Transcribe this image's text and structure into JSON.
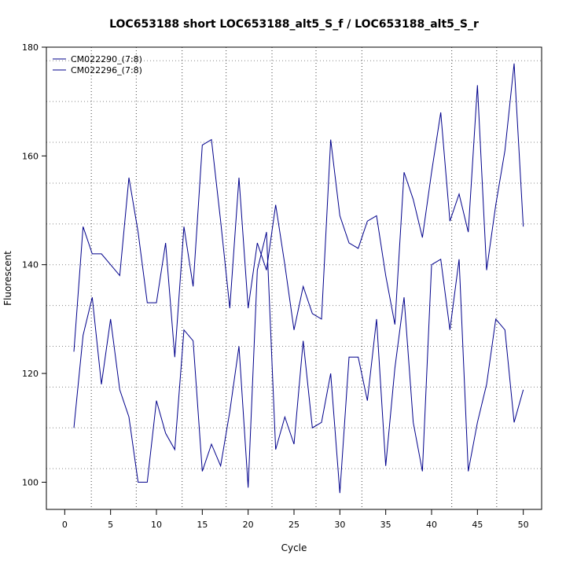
{
  "chart_data": {
    "type": "line",
    "title": "LOC653188 short LOC653188_alt5_S_f / LOC653188_alt5_S_r",
    "xlabel": "Cycle",
    "ylabel": "Fluorescent",
    "xlim": [
      -2,
      52
    ],
    "ylim": [
      95,
      180
    ],
    "xticks": [
      0,
      5,
      10,
      15,
      20,
      25,
      30,
      35,
      40,
      45,
      50
    ],
    "yticks": [
      100,
      120,
      140,
      160,
      180
    ],
    "ygrid": [
      102.5,
      110,
      117.5,
      125,
      132.5,
      140,
      147.5,
      155,
      162.5,
      170,
      177.5
    ],
    "xgrid": [
      2.9,
      7.8,
      12.8,
      17.6,
      22.6,
      27.4,
      32.4,
      42.2,
      47.1
    ],
    "legend_position": "top-left",
    "series": [
      {
        "name": "CM022290_(7:8)",
        "color": "#00008b",
        "x": [
          1,
          2,
          3,
          4,
          5,
          6,
          7,
          8,
          9,
          10,
          11,
          12,
          13,
          14,
          15,
          16,
          17,
          18,
          19,
          20,
          21,
          22,
          23,
          24,
          25,
          26,
          27,
          28,
          29,
          30,
          31,
          32,
          33,
          34,
          35,
          36,
          37,
          38,
          39,
          40,
          41,
          42,
          43,
          44,
          45,
          46,
          47,
          48,
          49,
          50
        ],
        "values": [
          124,
          147,
          142,
          142,
          140,
          138,
          156,
          146,
          133,
          133,
          144,
          123,
          147,
          136,
          162,
          163,
          148,
          132,
          156,
          132,
          144,
          139,
          151,
          140,
          128,
          136,
          131,
          130,
          163,
          149,
          144,
          143,
          148,
          149,
          138,
          129,
          157,
          152,
          145,
          157,
          168,
          148,
          153,
          146,
          173,
          139,
          151,
          161,
          177,
          147
        ]
      },
      {
        "name": "CM022296_(7:8)",
        "color": "#00008b",
        "x": [
          1,
          2,
          3,
          4,
          5,
          6,
          7,
          8,
          9,
          10,
          11,
          12,
          13,
          14,
          15,
          16,
          17,
          18,
          19,
          20,
          21,
          22,
          23,
          24,
          25,
          26,
          27,
          28,
          29,
          30,
          31,
          32,
          33,
          34,
          35,
          36,
          37,
          38,
          39,
          40,
          41,
          42,
          43,
          44,
          45,
          46,
          47,
          48,
          49,
          50
        ],
        "values": [
          110,
          127,
          134,
          118,
          130,
          117,
          112,
          100,
          100,
          115,
          109,
          106,
          128,
          126,
          102,
          107,
          103,
          113,
          125,
          99,
          139,
          146,
          106,
          112,
          107,
          126,
          110,
          111,
          120,
          98,
          123,
          123,
          115,
          130,
          103,
          121,
          134,
          111,
          102,
          140,
          141,
          128,
          141,
          102,
          111,
          118,
          130,
          128,
          111,
          117
        ]
      }
    ]
  }
}
